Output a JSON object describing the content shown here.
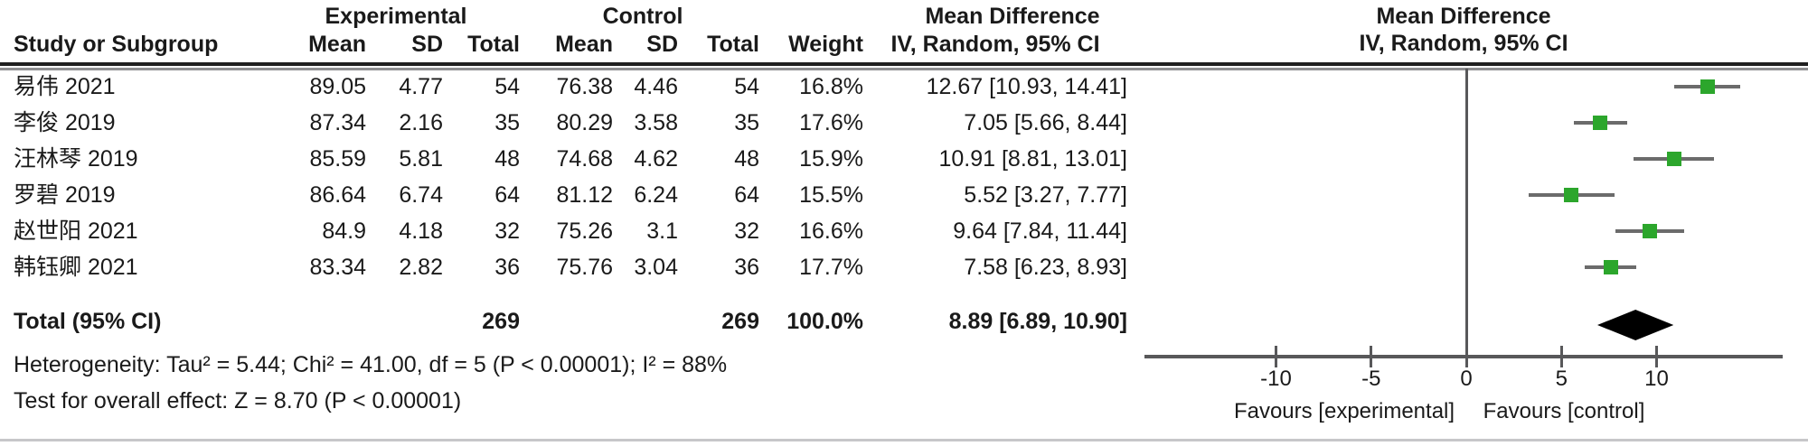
{
  "header": {
    "experimental": "Experimental",
    "control": "Control",
    "mean_difference_text": "Mean Difference",
    "mean_difference_plot": "Mean Difference",
    "study": "Study or Subgroup",
    "exp_mean": "Mean",
    "exp_sd": "SD",
    "exp_total": "Total",
    "ctl_mean": "Mean",
    "ctl_sd": "SD",
    "ctl_total": "Total",
    "weight": "Weight",
    "ci_method": "IV, Random, 95% CI",
    "ci_method_plot": "IV, Random, 95% CI"
  },
  "rows": [
    {
      "study": "易伟 2021",
      "exp_mean": "89.05",
      "exp_sd": "4.77",
      "exp_total": "54",
      "ctl_mean": "76.38",
      "ctl_sd": "4.46",
      "ctl_total": "54",
      "weight": "16.8%",
      "ci": "12.67 [10.93, 14.41]"
    },
    {
      "study": "李俊 2019",
      "exp_mean": "87.34",
      "exp_sd": "2.16",
      "exp_total": "35",
      "ctl_mean": "80.29",
      "ctl_sd": "3.58",
      "ctl_total": "35",
      "weight": "17.6%",
      "ci": "7.05 [5.66, 8.44]"
    },
    {
      "study": "汪林琴 2019",
      "exp_mean": "85.59",
      "exp_sd": "5.81",
      "exp_total": "48",
      "ctl_mean": "74.68",
      "ctl_sd": "4.62",
      "ctl_total": "48",
      "weight": "15.9%",
      "ci": "10.91 [8.81, 13.01]"
    },
    {
      "study": "罗碧 2019",
      "exp_mean": "86.64",
      "exp_sd": "6.74",
      "exp_total": "64",
      "ctl_mean": "81.12",
      "ctl_sd": "6.24",
      "ctl_total": "64",
      "weight": "15.5%",
      "ci": "5.52 [3.27, 7.77]"
    },
    {
      "study": "赵世阳 2021",
      "exp_mean": "84.9",
      "exp_sd": "4.18",
      "exp_total": "32",
      "ctl_mean": "75.26",
      "ctl_sd": "3.1",
      "ctl_total": "32",
      "weight": "16.6%",
      "ci": "9.64 [7.84, 11.44]"
    },
    {
      "study": "韩钰卿 2021",
      "exp_mean": "83.34",
      "exp_sd": "2.82",
      "exp_total": "36",
      "ctl_mean": "75.76",
      "ctl_sd": "3.04",
      "ctl_total": "36",
      "weight": "17.7%",
      "ci": "7.58 [6.23, 8.93]"
    }
  ],
  "total_row": {
    "label": "Total (95% CI)",
    "exp_total": "269",
    "ctl_total": "269",
    "weight": "100.0%",
    "ci": "8.89 [6.89, 10.90]"
  },
  "footnotes": {
    "heterogeneity": "Heterogeneity: Tau² = 5.44; Chi² = 41.00, df = 5 (P < 0.00001); I² = 88%",
    "overall_effect": "Test for overall effect: Z = 8.70 (P < 0.00001)"
  },
  "chart_data": {
    "type": "forest",
    "title": "Mean Difference, IV, Random, 95% CI",
    "x_axis": {
      "ticks": [
        -10,
        -5,
        0,
        5,
        10
      ],
      "range": [
        -16.9,
        16.6
      ]
    },
    "favours_left": "Favours [experimental]",
    "favours_right": "Favours [control]",
    "studies": [
      {
        "name": "易伟 2021",
        "md": 12.67,
        "lo": 10.93,
        "hi": 14.41,
        "weight_pct": 16.8
      },
      {
        "name": "李俊 2019",
        "md": 7.05,
        "lo": 5.66,
        "hi": 8.44,
        "weight_pct": 17.6
      },
      {
        "name": "汪林琴 2019",
        "md": 10.91,
        "lo": 8.81,
        "hi": 13.01,
        "weight_pct": 15.9
      },
      {
        "name": "罗碧 2019",
        "md": 5.52,
        "lo": 3.27,
        "hi": 7.77,
        "weight_pct": 15.5
      },
      {
        "name": "赵世阳 2021",
        "md": 9.64,
        "lo": 7.84,
        "hi": 11.44,
        "weight_pct": 16.6
      },
      {
        "name": "韩钰卿 2021",
        "md": 7.58,
        "lo": 6.23,
        "hi": 8.93,
        "weight_pct": 17.7
      }
    ],
    "total": {
      "md": 8.89,
      "lo": 6.89,
      "hi": 10.9
    },
    "colors": {
      "marker_green": "#2ca62c",
      "ci_line": "#6b6b6b",
      "axis": "#58585a",
      "diamond": "#000000"
    }
  }
}
